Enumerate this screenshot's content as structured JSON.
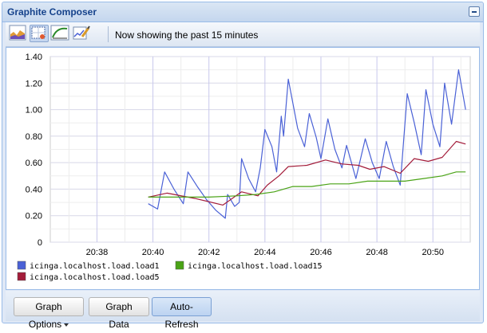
{
  "window": {
    "title": "Graphite Composer"
  },
  "toolbar": {
    "icons": [
      "graph-chart-icon",
      "select-graph-icon",
      "curve-icon",
      "edit-graph-icon"
    ],
    "status_text": "Now showing the past 15 minutes"
  },
  "bottombar": {
    "graph_options_label": "Graph Options",
    "graph_data_label": "Graph Data",
    "auto_refresh_label": "Auto-Refresh"
  },
  "colors": {
    "load1": "#4a61d6",
    "load5": "#a31c3a",
    "load15": "#4aa316",
    "accent": "#15428b"
  },
  "chart_data": {
    "type": "line",
    "x_format": "HH:MM",
    "xlim": [
      "20:36:20",
      "20:51:20"
    ],
    "x_ticks": [
      "20:38",
      "20:40",
      "20:42",
      "20:44",
      "20:46",
      "20:48",
      "20:50"
    ],
    "ylim": [
      0,
      1.4
    ],
    "y_ticks": [
      "0",
      "0.20",
      "0.40",
      "0.60",
      "0.80",
      "1.00",
      "1.20",
      "1.40"
    ],
    "grid": true,
    "legend_position": "bottom",
    "series": [
      {
        "name": "icinga.localhost.load.load1",
        "color": "#4a61d6",
        "points": [
          [
            "20:39:50",
            0.29
          ],
          [
            "20:40:10",
            0.25
          ],
          [
            "20:40:25",
            0.53
          ],
          [
            "20:40:45",
            0.4
          ],
          [
            "20:41:05",
            0.29
          ],
          [
            "20:41:15",
            0.53
          ],
          [
            "20:41:35",
            0.42
          ],
          [
            "20:41:55",
            0.32
          ],
          [
            "20:42:15",
            0.24
          ],
          [
            "20:42:35",
            0.18
          ],
          [
            "20:42:40",
            0.36
          ],
          [
            "20:42:55",
            0.27
          ],
          [
            "20:43:05",
            0.3
          ],
          [
            "20:43:10",
            0.63
          ],
          [
            "20:43:25",
            0.48
          ],
          [
            "20:43:40",
            0.38
          ],
          [
            "20:43:50",
            0.56
          ],
          [
            "20:44:00",
            0.85
          ],
          [
            "20:44:15",
            0.72
          ],
          [
            "20:44:25",
            0.53
          ],
          [
            "20:44:35",
            0.95
          ],
          [
            "20:44:40",
            0.8
          ],
          [
            "20:44:50",
            1.23
          ],
          [
            "20:45:10",
            0.86
          ],
          [
            "20:45:25",
            0.72
          ],
          [
            "20:45:35",
            0.97
          ],
          [
            "20:45:50",
            0.79
          ],
          [
            "20:46:00",
            0.63
          ],
          [
            "20:46:15",
            0.93
          ],
          [
            "20:46:30",
            0.7
          ],
          [
            "20:46:45",
            0.56
          ],
          [
            "20:46:55",
            0.73
          ],
          [
            "20:47:15",
            0.48
          ],
          [
            "20:47:35",
            0.78
          ],
          [
            "20:47:50",
            0.6
          ],
          [
            "20:48:05",
            0.48
          ],
          [
            "20:48:20",
            0.76
          ],
          [
            "20:48:35",
            0.57
          ],
          [
            "20:48:50",
            0.43
          ],
          [
            "20:49:05",
            1.12
          ],
          [
            "20:49:20",
            0.9
          ],
          [
            "20:49:35",
            0.66
          ],
          [
            "20:49:45",
            1.15
          ],
          [
            "20:50:00",
            0.89
          ],
          [
            "20:50:15",
            0.72
          ],
          [
            "20:50:25",
            1.2
          ],
          [
            "20:50:40",
            0.89
          ],
          [
            "20:50:55",
            1.3
          ],
          [
            "20:51:10",
            1.0
          ]
        ]
      },
      {
        "name": "icinga.localhost.load.load5",
        "color": "#a31c3a",
        "points": [
          [
            "20:39:50",
            0.34
          ],
          [
            "20:40:30",
            0.37
          ],
          [
            "20:41:30",
            0.33
          ],
          [
            "20:42:30",
            0.28
          ],
          [
            "20:43:10",
            0.38
          ],
          [
            "20:43:45",
            0.35
          ],
          [
            "20:44:05",
            0.43
          ],
          [
            "20:44:30",
            0.5
          ],
          [
            "20:44:50",
            0.57
          ],
          [
            "20:45:30",
            0.58
          ],
          [
            "20:46:10",
            0.62
          ],
          [
            "20:46:45",
            0.59
          ],
          [
            "20:47:20",
            0.58
          ],
          [
            "20:47:45",
            0.55
          ],
          [
            "20:48:15",
            0.57
          ],
          [
            "20:48:50",
            0.52
          ],
          [
            "20:49:20",
            0.63
          ],
          [
            "20:49:50",
            0.61
          ],
          [
            "20:50:20",
            0.64
          ],
          [
            "20:50:50",
            0.76
          ],
          [
            "20:51:10",
            0.74
          ]
        ]
      },
      {
        "name": "icinga.localhost.load.load15",
        "color": "#4aa316",
        "points": [
          [
            "20:39:50",
            0.34
          ],
          [
            "20:41:00",
            0.34
          ],
          [
            "20:42:00",
            0.34
          ],
          [
            "20:43:00",
            0.35
          ],
          [
            "20:43:40",
            0.36
          ],
          [
            "20:44:20",
            0.38
          ],
          [
            "20:45:00",
            0.42
          ],
          [
            "20:45:40",
            0.42
          ],
          [
            "20:46:20",
            0.44
          ],
          [
            "20:47:00",
            0.44
          ],
          [
            "20:47:40",
            0.46
          ],
          [
            "20:48:20",
            0.46
          ],
          [
            "20:49:00",
            0.46
          ],
          [
            "20:49:40",
            0.48
          ],
          [
            "20:50:20",
            0.5
          ],
          [
            "20:50:50",
            0.53
          ],
          [
            "20:51:10",
            0.53
          ]
        ]
      }
    ]
  }
}
